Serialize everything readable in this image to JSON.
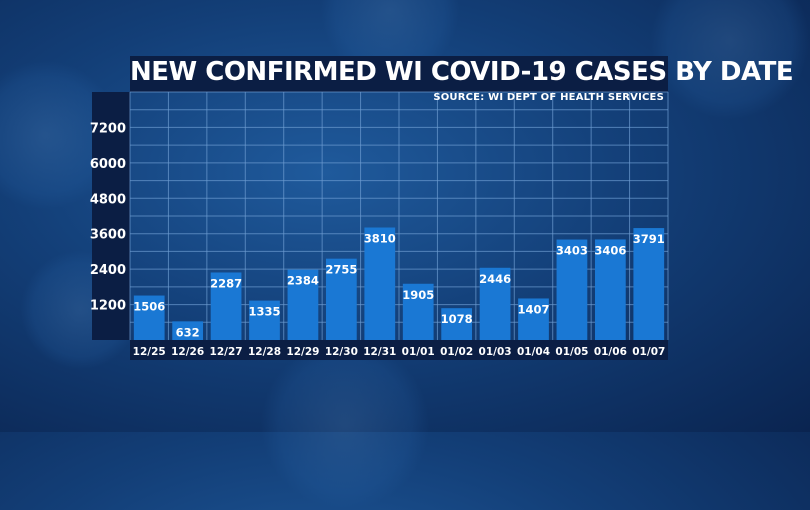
{
  "title": "NEW CONFIRMED WI COVID-19 CASES BY DATE",
  "source": "SOURCE: WI DEPT OF HEALTH SERVICES",
  "colors": {
    "bar": "#1a78d4",
    "grid": "#6d9cd1",
    "panel": "#0b1e44",
    "text": "#ffffff"
  },
  "chart_data": {
    "type": "bar",
    "title": "NEW CONFIRMED WI COVID-19 CASES BY DATE",
    "categories": [
      "12/25",
      "12/26",
      "12/27",
      "12/28",
      "12/29",
      "12/30",
      "12/31",
      "01/01",
      "01/02",
      "01/03",
      "01/04",
      "01/05",
      "01/06",
      "01/07"
    ],
    "values": [
      1506,
      632,
      2287,
      1335,
      2384,
      2755,
      3810,
      1905,
      1078,
      2446,
      1407,
      3403,
      3406,
      3791
    ],
    "yticks": [
      1200,
      2400,
      3600,
      4800,
      6000,
      7200
    ],
    "ylim": [
      0,
      8400
    ],
    "grid": true,
    "data_labels": true
  }
}
